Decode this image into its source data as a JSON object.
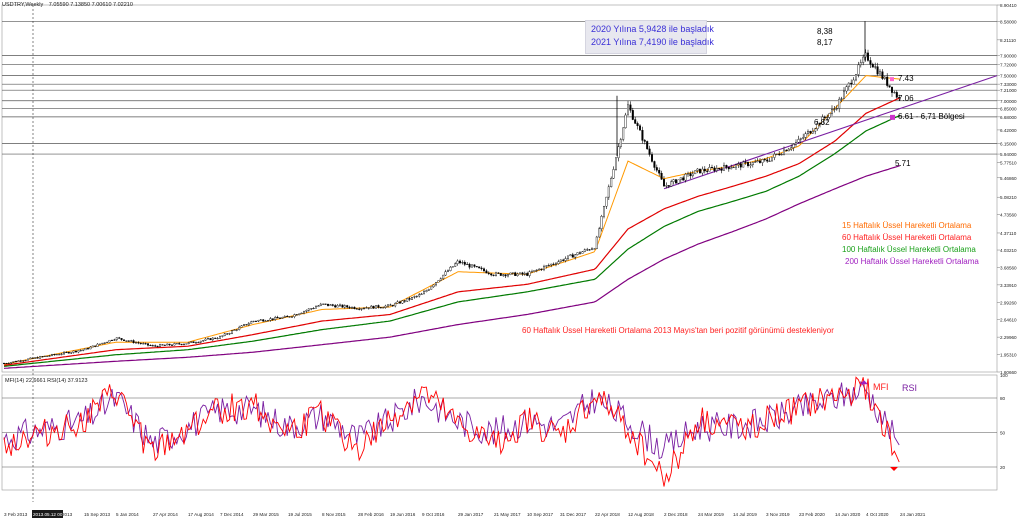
{
  "header": {
    "symbol": "USDTRY,Weekly",
    "ohlc": "7.05590 7.13850 7.00610 7.02210"
  },
  "info_box": {
    "line1": "2020 Yılına 5,9428 ile başladık",
    "line2": "2021 Yılına 7,4190 ile başladık"
  },
  "labels": {
    "peak_high": "8,38",
    "peak_low": "8,17",
    "level_743": "7.43",
    "level_706": "7.06",
    "level_682": "6,82",
    "zone": "6.61 - 6,71 Bölgesi",
    "level_571": "5.71",
    "mfi": "MFI",
    "rsi": "RSI",
    "ema_note": "60 Haftalık Üssel Hareketli Ortalama  2013 Mayıs'tan beri pozitif görünümü destekleniyor"
  },
  "legend": [
    {
      "text": "15 Haftalık Üssel Hareketli Ortalama",
      "color": "#ff6a00"
    },
    {
      "text": "60 Haftalık Üssel Hareketli Ortalama",
      "color": "#ff2020"
    },
    {
      "text": "100 Haftalık Üssel Hareketli Ortalama",
      "color": "#1aa01a"
    },
    {
      "text": "200 Haftalık Üssel Hareketli Ortalama",
      "color": "#a020c0"
    }
  ],
  "indicator_header": "MFI(14) 22.6661  RSI(14) 37.9123",
  "colors": {
    "ema15": "#ff9900",
    "ema60": "#e00000",
    "ema100": "#007a00",
    "ema200": "#800080",
    "trend": "#7a1fa2",
    "mfi": "#ff0000",
    "rsi": "#7a1fa2",
    "price": "#000000"
  },
  "chart_data": {
    "type": "candlestick",
    "timeframe": "Weekly",
    "y_ticks": [
      "8.90410",
      "8.58000",
      "8.21110",
      "7.90000",
      "7.72000",
      "7.50000",
      "7.33000",
      "7.21000",
      "7.00000",
      "6.85000",
      "6.68000",
      "6.42000",
      "6.15000",
      "5.94000",
      "5.77510",
      "5.46860",
      "5.08210",
      "4.73560",
      "4.37110",
      "4.03210",
      "3.68560",
      "3.33910",
      "2.99260",
      "2.64610",
      "2.29960",
      "1.95310",
      "1.60660"
    ],
    "y_range": [
      1.6066,
      8.9041
    ],
    "horizontal_levels": [
      8.58,
      7.9,
      7.72,
      7.5,
      7.33,
      7.21,
      7.0,
      6.85,
      6.68,
      6.15,
      5.94
    ],
    "x_ticks": [
      "3 Feb 2013",
      "2013.05.12 00:00",
      "2013",
      "15 Sep 2013",
      "5 Jan 2014",
      "27 Apr 2014",
      "17 Aug 2014",
      "7 Dec 2014",
      "29 Mar 2015",
      "19 Jul 2015",
      "8 Nov 2015",
      "28 Feb 2016",
      "19 Jun 2016",
      "9 Oct 2016",
      "29 Jan 2017",
      "21 May 2017",
      "10 Sep 2017",
      "31 Dec 2017",
      "22 Apr 2018",
      "12 Aug 2018",
      "2 Dec 2018",
      "24 Mar 2019",
      "14 Jul 2019",
      "3 Nov 2019",
      "23 Feb 2020",
      "14 Jun 2020",
      "4 Oct 2020",
      "24 Jan 2021"
    ],
    "price_path": [
      [
        "3 Feb 2013",
        1.78
      ],
      [
        "15 Sep 2013",
        2.05
      ],
      [
        "5 Jan 2014",
        2.28
      ],
      [
        "27 Apr 2014",
        2.12
      ],
      [
        "17 Aug 2014",
        2.18
      ],
      [
        "7 Dec 2014",
        2.3
      ],
      [
        "29 Mar 2015",
        2.62
      ],
      [
        "19 Jul 2015",
        2.7
      ],
      [
        "8 Nov 2015",
        2.95
      ],
      [
        "28 Feb 2016",
        2.88
      ],
      [
        "19 Jun 2016",
        2.92
      ],
      [
        "9 Oct 2016",
        3.15
      ],
      [
        "29 Jan 2017",
        3.8
      ],
      [
        "21 May 2017",
        3.55
      ],
      [
        "10 Sep 2017",
        3.55
      ],
      [
        "31 Dec 2017",
        3.82
      ],
      [
        "22 Apr 2018",
        4.1
      ],
      [
        "12 Aug 2018",
        6.9
      ],
      [
        "2 Dec 2018",
        5.3
      ],
      [
        "24 Mar 2019",
        5.6
      ],
      [
        "14 Jul 2019",
        5.7
      ],
      [
        "3 Nov 2019",
        5.8
      ],
      [
        "23 Feb 2020",
        6.2
      ],
      [
        "14 Jun 2020",
        6.85
      ],
      [
        "4 Oct 2020",
        7.9
      ],
      [
        "24 Jan 2021",
        7.02
      ]
    ],
    "ema15": [
      [
        "3 Feb 2013",
        1.76
      ],
      [
        "5 Jan 2014",
        2.2
      ],
      [
        "17 Aug 2014",
        2.2
      ],
      [
        "29 Mar 2015",
        2.55
      ],
      [
        "8 Nov 2015",
        2.85
      ],
      [
        "19 Jun 2016",
        2.9
      ],
      [
        "29 Jan 2017",
        3.6
      ],
      [
        "10 Sep 2017",
        3.55
      ],
      [
        "22 Apr 2018",
        4.0
      ],
      [
        "12 Aug 2018",
        5.8
      ],
      [
        "2 Dec 2018",
        5.45
      ],
      [
        "24 Mar 2019",
        5.6
      ],
      [
        "14 Jul 2019",
        5.7
      ],
      [
        "3 Nov 2019",
        5.85
      ],
      [
        "23 Feb 2020",
        6.1
      ],
      [
        "14 Jun 2020",
        6.85
      ],
      [
        "4 Oct 2020",
        7.5
      ],
      [
        "24 Jan 2021",
        7.43
      ]
    ],
    "ema60": [
      [
        "3 Feb 2013",
        1.74
      ],
      [
        "5 Jan 2014",
        2.05
      ],
      [
        "17 Aug 2014",
        2.12
      ],
      [
        "29 Mar 2015",
        2.35
      ],
      [
        "8 Nov 2015",
        2.62
      ],
      [
        "19 Jun 2016",
        2.75
      ],
      [
        "29 Jan 2017",
        3.2
      ],
      [
        "10 Sep 2017",
        3.35
      ],
      [
        "22 Apr 2018",
        3.65
      ],
      [
        "12 Aug 2018",
        4.45
      ],
      [
        "2 Dec 2018",
        4.85
      ],
      [
        "24 Mar 2019",
        5.1
      ],
      [
        "14 Jul 2019",
        5.3
      ],
      [
        "3 Nov 2019",
        5.5
      ],
      [
        "23 Feb 2020",
        5.75
      ],
      [
        "14 Jun 2020",
        6.2
      ],
      [
        "4 Oct 2020",
        6.75
      ],
      [
        "24 Jan 2021",
        7.06
      ]
    ],
    "ema100": [
      [
        "3 Feb 2013",
        1.72
      ],
      [
        "5 Jan 2014",
        1.95
      ],
      [
        "17 Aug 2014",
        2.05
      ],
      [
        "29 Mar 2015",
        2.22
      ],
      [
        "8 Nov 2015",
        2.45
      ],
      [
        "19 Jun 2016",
        2.62
      ],
      [
        "29 Jan 2017",
        3.0
      ],
      [
        "10 Sep 2017",
        3.2
      ],
      [
        "22 Apr 2018",
        3.45
      ],
      [
        "12 Aug 2018",
        4.05
      ],
      [
        "2 Dec 2018",
        4.5
      ],
      [
        "24 Mar 2019",
        4.8
      ],
      [
        "14 Jul 2019",
        5.0
      ],
      [
        "3 Nov 2019",
        5.2
      ],
      [
        "23 Feb 2020",
        5.5
      ],
      [
        "14 Jun 2020",
        5.95
      ],
      [
        "4 Oct 2020",
        6.4
      ],
      [
        "24 Jan 2021",
        6.71
      ]
    ],
    "ema200": [
      [
        "3 Feb 2013",
        1.68
      ],
      [
        "5 Jan 2014",
        1.82
      ],
      [
        "17 Aug 2014",
        1.9
      ],
      [
        "29 Mar 2015",
        2.0
      ],
      [
        "8 Nov 2015",
        2.15
      ],
      [
        "19 Jun 2016",
        2.3
      ],
      [
        "29 Jan 2017",
        2.55
      ],
      [
        "10 Sep 2017",
        2.75
      ],
      [
        "22 Apr 2018",
        3.0
      ],
      [
        "12 Aug 2018",
        3.45
      ],
      [
        "2 Dec 2018",
        3.85
      ],
      [
        "24 Mar 2019",
        4.15
      ],
      [
        "14 Jul 2019",
        4.4
      ],
      [
        "3 Nov 2019",
        4.65
      ],
      [
        "23 Feb 2020",
        4.95
      ],
      [
        "14 Jun 2020",
        5.25
      ],
      [
        "4 Oct 2020",
        5.5
      ],
      [
        "24 Jan 2021",
        5.71
      ]
    ],
    "trendline": [
      [
        "2 Dec 2018",
        5.25
      ],
      [
        "24 Jan 2021",
        6.66
      ],
      [
        "end",
        7.5
      ]
    ],
    "indicator": {
      "y_ticks": [
        "100",
        "80",
        "50",
        "20"
      ],
      "levels": [
        80,
        50,
        20
      ],
      "mfi": [
        [
          "3 Feb 2013",
          40
        ],
        [
          "15 Sep 2013",
          60
        ],
        [
          "5 Jan 2014",
          85
        ],
        [
          "27 Apr 2014",
          30
        ],
        [
          "17 Aug 2014",
          55
        ],
        [
          "7 Dec 2014",
          70
        ],
        [
          "29 Mar 2015",
          75
        ],
        [
          "19 Jul 2015",
          50
        ],
        [
          "8 Nov 2015",
          65
        ],
        [
          "28 Feb 2016",
          35
        ],
        [
          "19 Jun 2016",
          60
        ],
        [
          "9 Oct 2016",
          85
        ],
        [
          "29 Jan 2017",
          55
        ],
        [
          "21 May 2017",
          40
        ],
        [
          "10 Sep 2017",
          60
        ],
        [
          "31 Dec 2017",
          45
        ],
        [
          "22 Apr 2018",
          80
        ],
        [
          "12 Aug 2018",
          55
        ],
        [
          "2 Dec 2018",
          10
        ],
        [
          "24 Mar 2019",
          60
        ],
        [
          "14 Jul 2019",
          55
        ],
        [
          "3 Nov 2019",
          60
        ],
        [
          "23 Feb 2020",
          70
        ],
        [
          "14 Jun 2020",
          80
        ],
        [
          "4 Oct 2020",
          90
        ],
        [
          "24 Jan 2021",
          22.67
        ]
      ],
      "rsi": [
        [
          "3 Feb 2013",
          45
        ],
        [
          "15 Sep 2013",
          60
        ],
        [
          "5 Jan 2014",
          80
        ],
        [
          "27 Apr 2014",
          40
        ],
        [
          "17 Aug 2014",
          55
        ],
        [
          "7 Dec 2014",
          70
        ],
        [
          "29 Mar 2015",
          70
        ],
        [
          "19 Jul 2015",
          55
        ],
        [
          "8 Nov 2015",
          65
        ],
        [
          "28 Feb 2016",
          45
        ],
        [
          "19 Jun 2016",
          60
        ],
        [
          "9 Oct 2016",
          80
        ],
        [
          "29 Jan 2017",
          60
        ],
        [
          "21 May 2017",
          50
        ],
        [
          "10 Sep 2017",
          60
        ],
        [
          "31 Dec 2017",
          55
        ],
        [
          "22 Apr 2018",
          80
        ],
        [
          "12 Aug 2018",
          60
        ],
        [
          "2 Dec 2018",
          35
        ],
        [
          "24 Mar 2019",
          55
        ],
        [
          "14 Jul 2019",
          55
        ],
        [
          "3 Nov 2019",
          60
        ],
        [
          "23 Feb 2020",
          70
        ],
        [
          "14 Jun 2020",
          80
        ],
        [
          "4 Oct 2020",
          88
        ],
        [
          "24 Jan 2021",
          37.91
        ]
      ]
    }
  }
}
